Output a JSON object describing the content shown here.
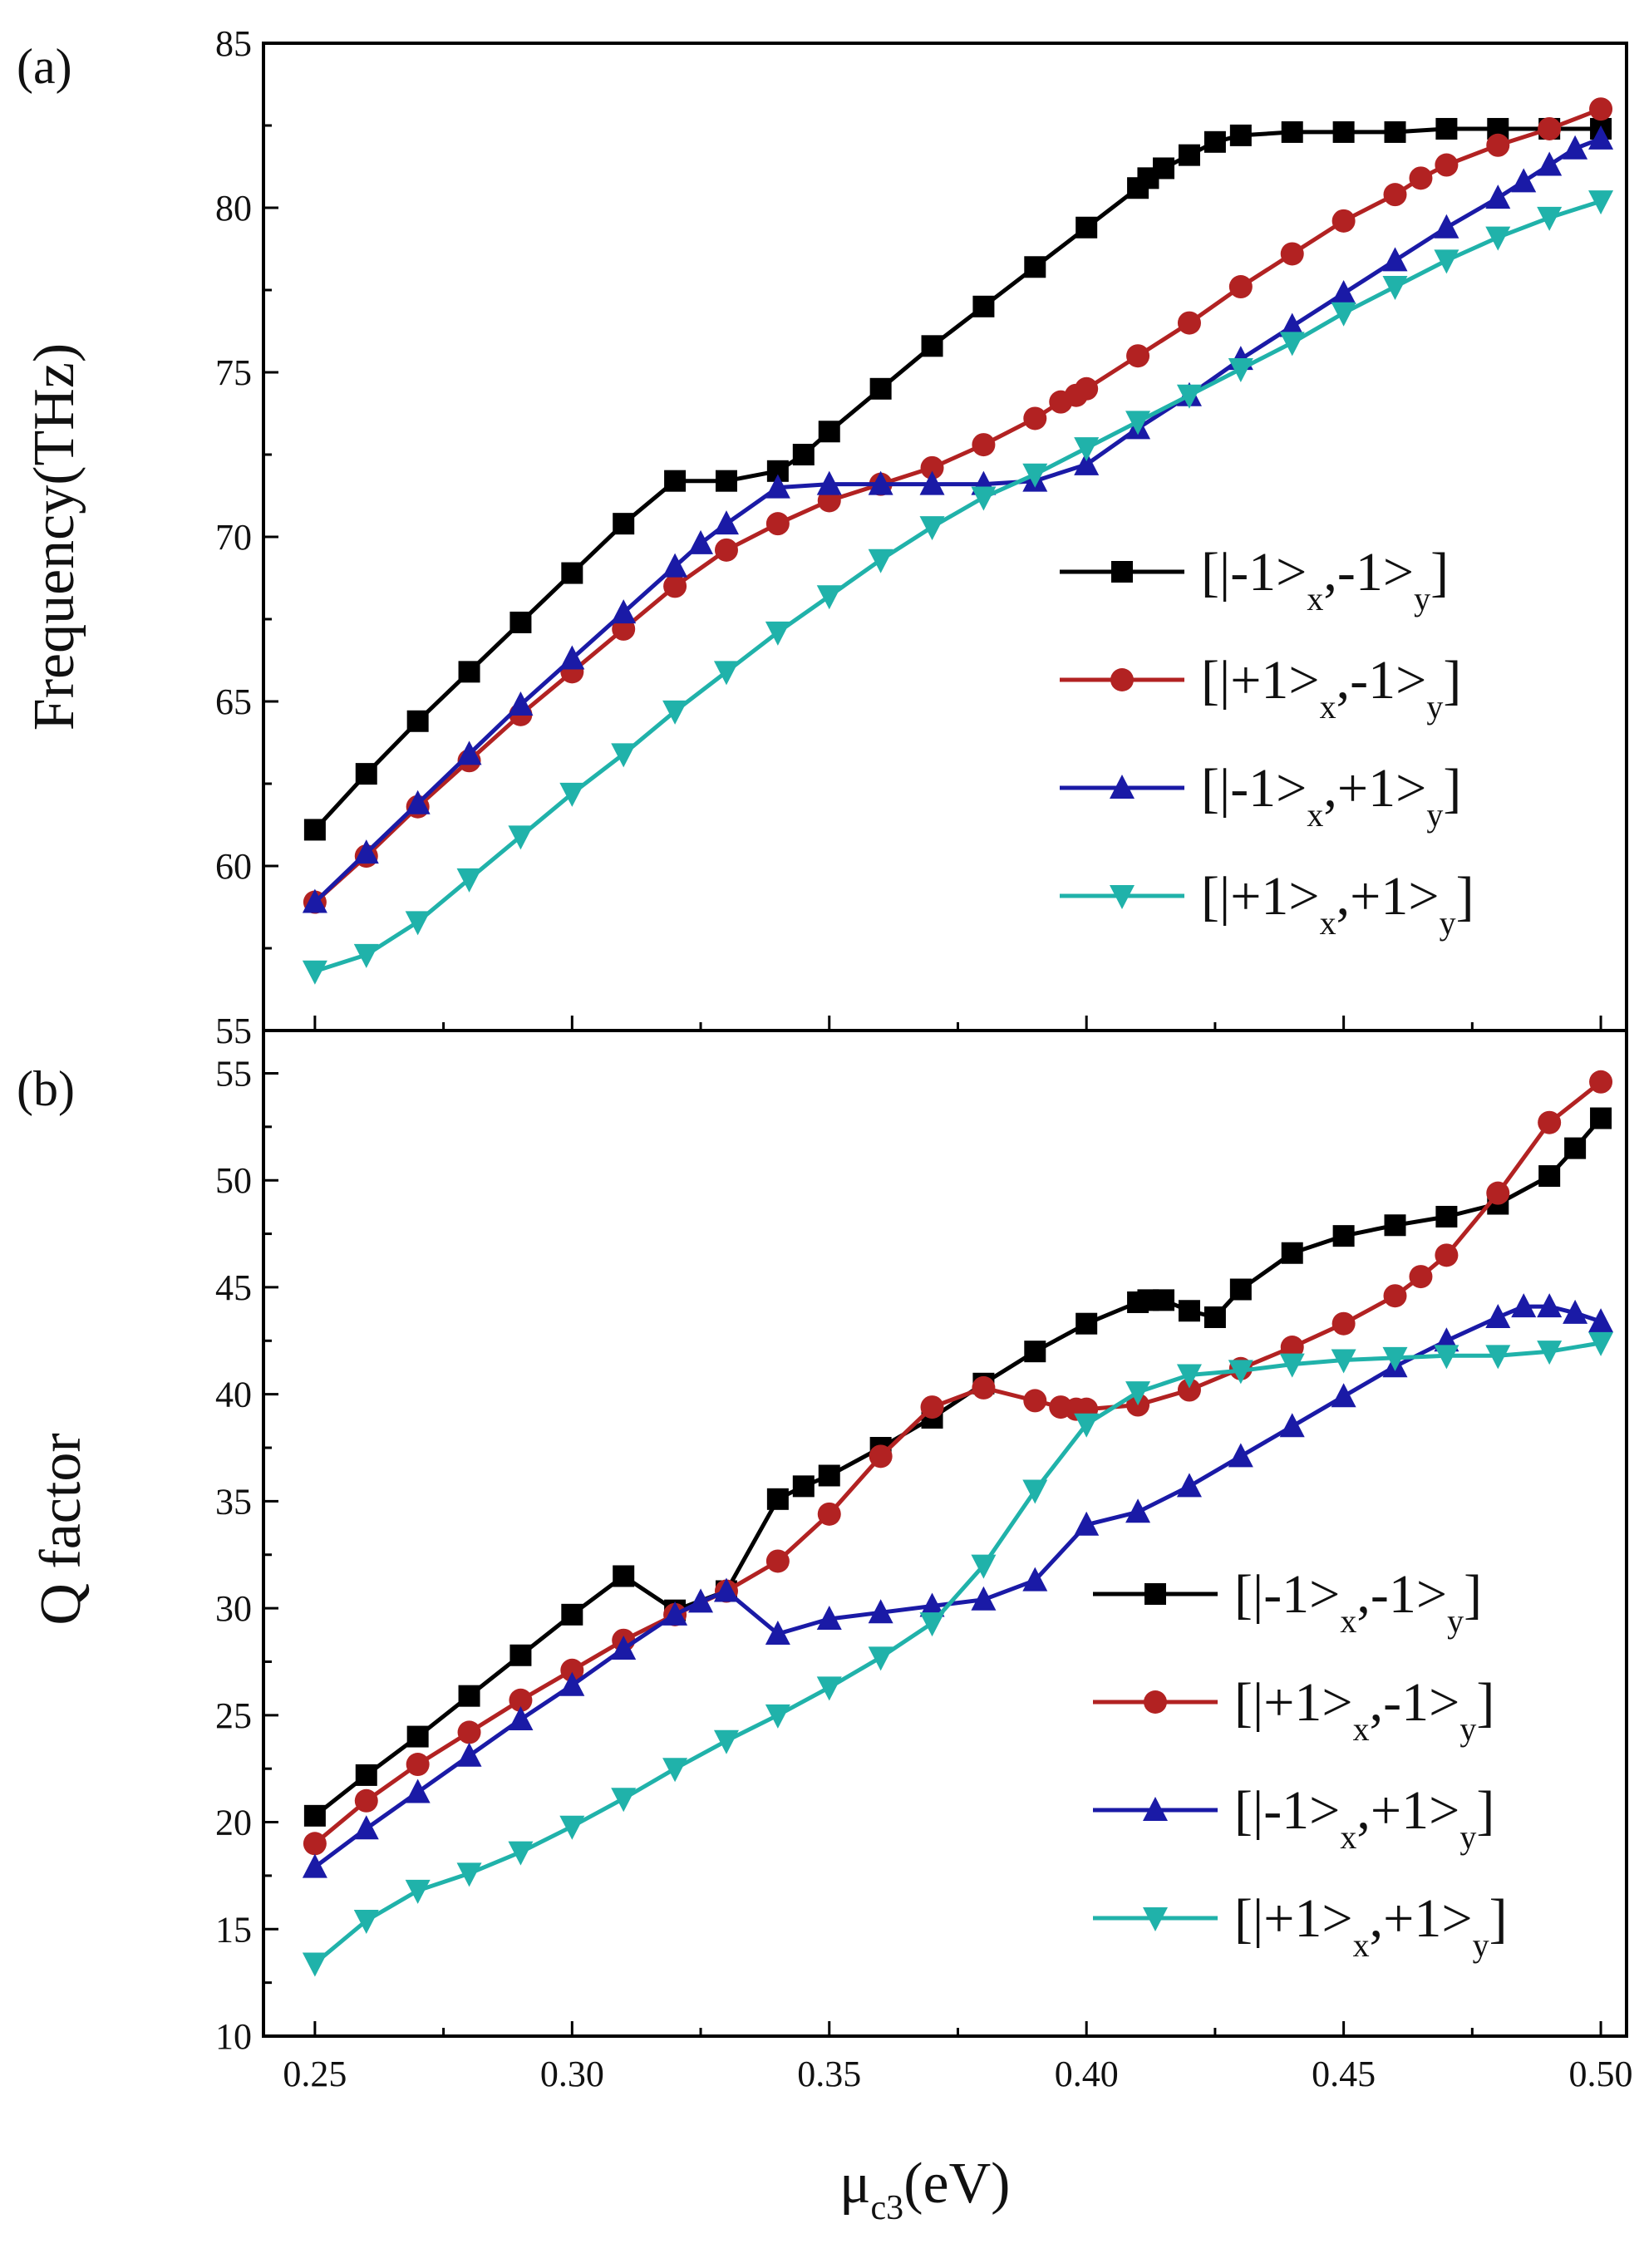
{
  "chart_data": [
    {
      "type": "line",
      "panel_label": "(a)",
      "ylabel": "Frequency(THz)",
      "xlabel": "",
      "xlim": [
        0.24,
        0.505
      ],
      "ylim": [
        55,
        85
      ],
      "y_ticks": [
        "55",
        "60",
        "65",
        "70",
        "75",
        "80",
        "85"
      ],
      "legend_position": "center-right",
      "series": [
        {
          "name": "[|-1>x,-1>y]",
          "legend_main": "[|-1>",
          "legend_sub1": "x",
          "legend_mid": ",-1>",
          "legend_sub2": "y",
          "legend_end": "]",
          "color": "#000000",
          "marker": "square",
          "x": [
            0.25,
            0.26,
            0.27,
            0.28,
            0.29,
            0.3,
            0.31,
            0.32,
            0.33,
            0.34,
            0.345,
            0.35,
            0.36,
            0.37,
            0.38,
            0.39,
            0.4,
            0.41,
            0.412,
            0.415,
            0.42,
            0.425,
            0.43,
            0.44,
            0.45,
            0.46,
            0.47,
            0.48,
            0.49,
            0.5
          ],
          "y": [
            61.1,
            62.8,
            64.4,
            65.9,
            67.4,
            68.9,
            70.4,
            71.7,
            71.7,
            72.0,
            72.5,
            73.2,
            74.5,
            75.8,
            77.0,
            78.2,
            79.4,
            80.6,
            80.9,
            81.2,
            81.6,
            82.0,
            82.2,
            82.3,
            82.3,
            82.3,
            82.4,
            82.4,
            82.4,
            82.4
          ]
        },
        {
          "name": "[|+1>x,-1>y]",
          "legend_main": "[|+1>",
          "legend_sub1": "x",
          "legend_mid": ",-1>",
          "legend_sub2": "y",
          "legend_end": "]",
          "color": "#b22222",
          "marker": "circle",
          "x": [
            0.25,
            0.26,
            0.27,
            0.28,
            0.29,
            0.3,
            0.31,
            0.32,
            0.33,
            0.34,
            0.35,
            0.36,
            0.37,
            0.38,
            0.39,
            0.395,
            0.398,
            0.4,
            0.41,
            0.42,
            0.43,
            0.44,
            0.45,
            0.46,
            0.465,
            0.47,
            0.48,
            0.49,
            0.5
          ],
          "y": [
            58.9,
            60.3,
            61.8,
            63.2,
            64.6,
            65.9,
            67.2,
            68.5,
            69.6,
            70.4,
            71.1,
            71.6,
            72.1,
            72.8,
            73.6,
            74.1,
            74.3,
            74.5,
            75.5,
            76.5,
            77.6,
            78.6,
            79.6,
            80.4,
            80.9,
            81.3,
            81.9,
            82.4,
            83.0
          ]
        },
        {
          "name": "[|-1>x,+1>y]",
          "legend_main": "[|-1>",
          "legend_sub1": "x",
          "legend_mid": ",+1>",
          "legend_sub2": "y",
          "legend_end": "]",
          "color": "#1a1aa6",
          "marker": "triangle-up",
          "x": [
            0.25,
            0.26,
            0.27,
            0.28,
            0.29,
            0.3,
            0.31,
            0.32,
            0.325,
            0.33,
            0.34,
            0.35,
            0.36,
            0.37,
            0.38,
            0.39,
            0.4,
            0.41,
            0.42,
            0.43,
            0.44,
            0.45,
            0.46,
            0.47,
            0.48,
            0.485,
            0.49,
            0.495,
            0.5
          ],
          "y": [
            58.9,
            60.4,
            61.9,
            63.4,
            64.9,
            66.3,
            67.7,
            69.1,
            69.8,
            70.4,
            71.5,
            71.6,
            71.6,
            71.6,
            71.6,
            71.7,
            72.2,
            73.3,
            74.3,
            75.4,
            76.4,
            77.4,
            78.4,
            79.4,
            80.3,
            80.8,
            81.3,
            81.8,
            82.1
          ]
        },
        {
          "name": "[|+1>x,+1>y]",
          "legend_main": "[|+1>",
          "legend_sub1": "x",
          "legend_mid": ",+1>",
          "legend_sub2": "y",
          "legend_end": "]",
          "color": "#20b2aa",
          "marker": "triangle-down",
          "x": [
            0.25,
            0.26,
            0.27,
            0.28,
            0.29,
            0.3,
            0.31,
            0.32,
            0.33,
            0.34,
            0.35,
            0.36,
            0.37,
            0.38,
            0.39,
            0.4,
            0.41,
            0.42,
            0.43,
            0.44,
            0.45,
            0.46,
            0.47,
            0.48,
            0.49,
            0.5
          ],
          "y": [
            56.8,
            57.3,
            58.3,
            59.6,
            60.9,
            62.2,
            63.4,
            64.7,
            65.9,
            67.1,
            68.2,
            69.3,
            70.3,
            71.2,
            71.9,
            72.7,
            73.5,
            74.3,
            75.1,
            75.9,
            76.8,
            77.6,
            78.4,
            79.1,
            79.7,
            80.2
          ]
        }
      ]
    },
    {
      "type": "line",
      "panel_label": "(b)",
      "ylabel": "Q factor",
      "xlabel_main": "μ",
      "xlabel_sub": "c3",
      "xlabel_end": "(eV)",
      "xlim": [
        0.24,
        0.505
      ],
      "ylim": [
        10,
        57
      ],
      "y_ticks": [
        "10",
        "15",
        "20",
        "25",
        "30",
        "35",
        "40",
        "45",
        "50",
        "55"
      ],
      "x_ticks": [
        "0.25",
        "0.30",
        "0.35",
        "0.40",
        "0.45",
        "0.50"
      ],
      "legend_position": "lower-right",
      "series": [
        {
          "name": "[|-1>x,-1>y]",
          "legend_main": "[|-1>",
          "legend_sub1": "x",
          "legend_mid": ",-1>",
          "legend_sub2": "y",
          "legend_end": "]",
          "color": "#000000",
          "marker": "square",
          "x": [
            0.25,
            0.26,
            0.27,
            0.28,
            0.29,
            0.3,
            0.31,
            0.32,
            0.33,
            0.34,
            0.345,
            0.35,
            0.36,
            0.37,
            0.38,
            0.39,
            0.4,
            0.41,
            0.412,
            0.415,
            0.42,
            0.425,
            0.43,
            0.44,
            0.45,
            0.46,
            0.47,
            0.48,
            0.49,
            0.495,
            0.5
          ],
          "y": [
            20.3,
            22.2,
            24.0,
            25.9,
            27.8,
            29.7,
            31.5,
            29.9,
            30.8,
            35.1,
            35.7,
            36.2,
            37.5,
            38.9,
            40.5,
            42.0,
            43.3,
            44.3,
            44.4,
            44.4,
            43.9,
            43.6,
            44.9,
            46.6,
            47.4,
            47.9,
            48.3,
            48.9,
            50.2,
            51.5,
            52.9
          ]
        },
        {
          "name": "[|+1>x,-1>y]",
          "legend_main": "[|+1>",
          "legend_sub1": "x",
          "legend_mid": ",-1>",
          "legend_sub2": "y",
          "legend_end": "]",
          "color": "#b22222",
          "marker": "circle",
          "x": [
            0.25,
            0.26,
            0.27,
            0.28,
            0.29,
            0.3,
            0.31,
            0.32,
            0.33,
            0.34,
            0.35,
            0.36,
            0.37,
            0.38,
            0.39,
            0.395,
            0.398,
            0.4,
            0.41,
            0.42,
            0.43,
            0.44,
            0.45,
            0.46,
            0.465,
            0.47,
            0.48,
            0.49,
            0.5
          ],
          "y": [
            19.0,
            21.0,
            22.7,
            24.2,
            25.7,
            27.1,
            28.5,
            29.7,
            30.8,
            32.2,
            34.4,
            37.1,
            39.4,
            40.3,
            39.7,
            39.4,
            39.3,
            39.3,
            39.5,
            40.2,
            41.2,
            42.2,
            43.3,
            44.6,
            45.5,
            46.5,
            49.4,
            52.7,
            54.6
          ]
        },
        {
          "name": "[|-1>x,+1>y]",
          "legend_main": "[|-1>",
          "legend_sub1": "x",
          "legend_mid": ",+1>",
          "legend_sub2": "y",
          "legend_end": "]",
          "color": "#1a1aa6",
          "marker": "triangle-up",
          "x": [
            0.25,
            0.26,
            0.27,
            0.28,
            0.29,
            0.3,
            0.31,
            0.32,
            0.325,
            0.33,
            0.34,
            0.35,
            0.36,
            0.37,
            0.38,
            0.39,
            0.4,
            0.41,
            0.42,
            0.43,
            0.44,
            0.45,
            0.46,
            0.47,
            0.48,
            0.485,
            0.49,
            0.495,
            0.5
          ],
          "y": [
            17.9,
            19.7,
            21.4,
            23.1,
            24.8,
            26.4,
            28.1,
            29.7,
            30.3,
            30.8,
            28.8,
            29.5,
            29.8,
            30.1,
            30.4,
            31.3,
            33.9,
            34.5,
            35.7,
            37.1,
            38.5,
            39.9,
            41.3,
            42.5,
            43.6,
            44.1,
            44.1,
            43.8,
            43.4
          ]
        },
        {
          "name": "[|+1>x,+1>y]",
          "legend_main": "[|+1>",
          "legend_sub1": "x",
          "legend_mid": ",+1>",
          "legend_sub2": "y",
          "legend_end": "]",
          "color": "#20b2aa",
          "marker": "triangle-down",
          "x": [
            0.25,
            0.26,
            0.27,
            0.28,
            0.29,
            0.3,
            0.31,
            0.32,
            0.33,
            0.34,
            0.35,
            0.36,
            0.37,
            0.38,
            0.39,
            0.4,
            0.41,
            0.42,
            0.43,
            0.44,
            0.45,
            0.46,
            0.47,
            0.48,
            0.49,
            0.5
          ],
          "y": [
            13.4,
            15.4,
            16.8,
            17.6,
            18.6,
            19.8,
            21.1,
            22.5,
            23.8,
            25.0,
            26.3,
            27.7,
            29.3,
            32.0,
            35.5,
            38.6,
            40.1,
            40.9,
            41.1,
            41.4,
            41.6,
            41.7,
            41.8,
            41.8,
            42.0,
            42.4
          ]
        }
      ]
    }
  ]
}
